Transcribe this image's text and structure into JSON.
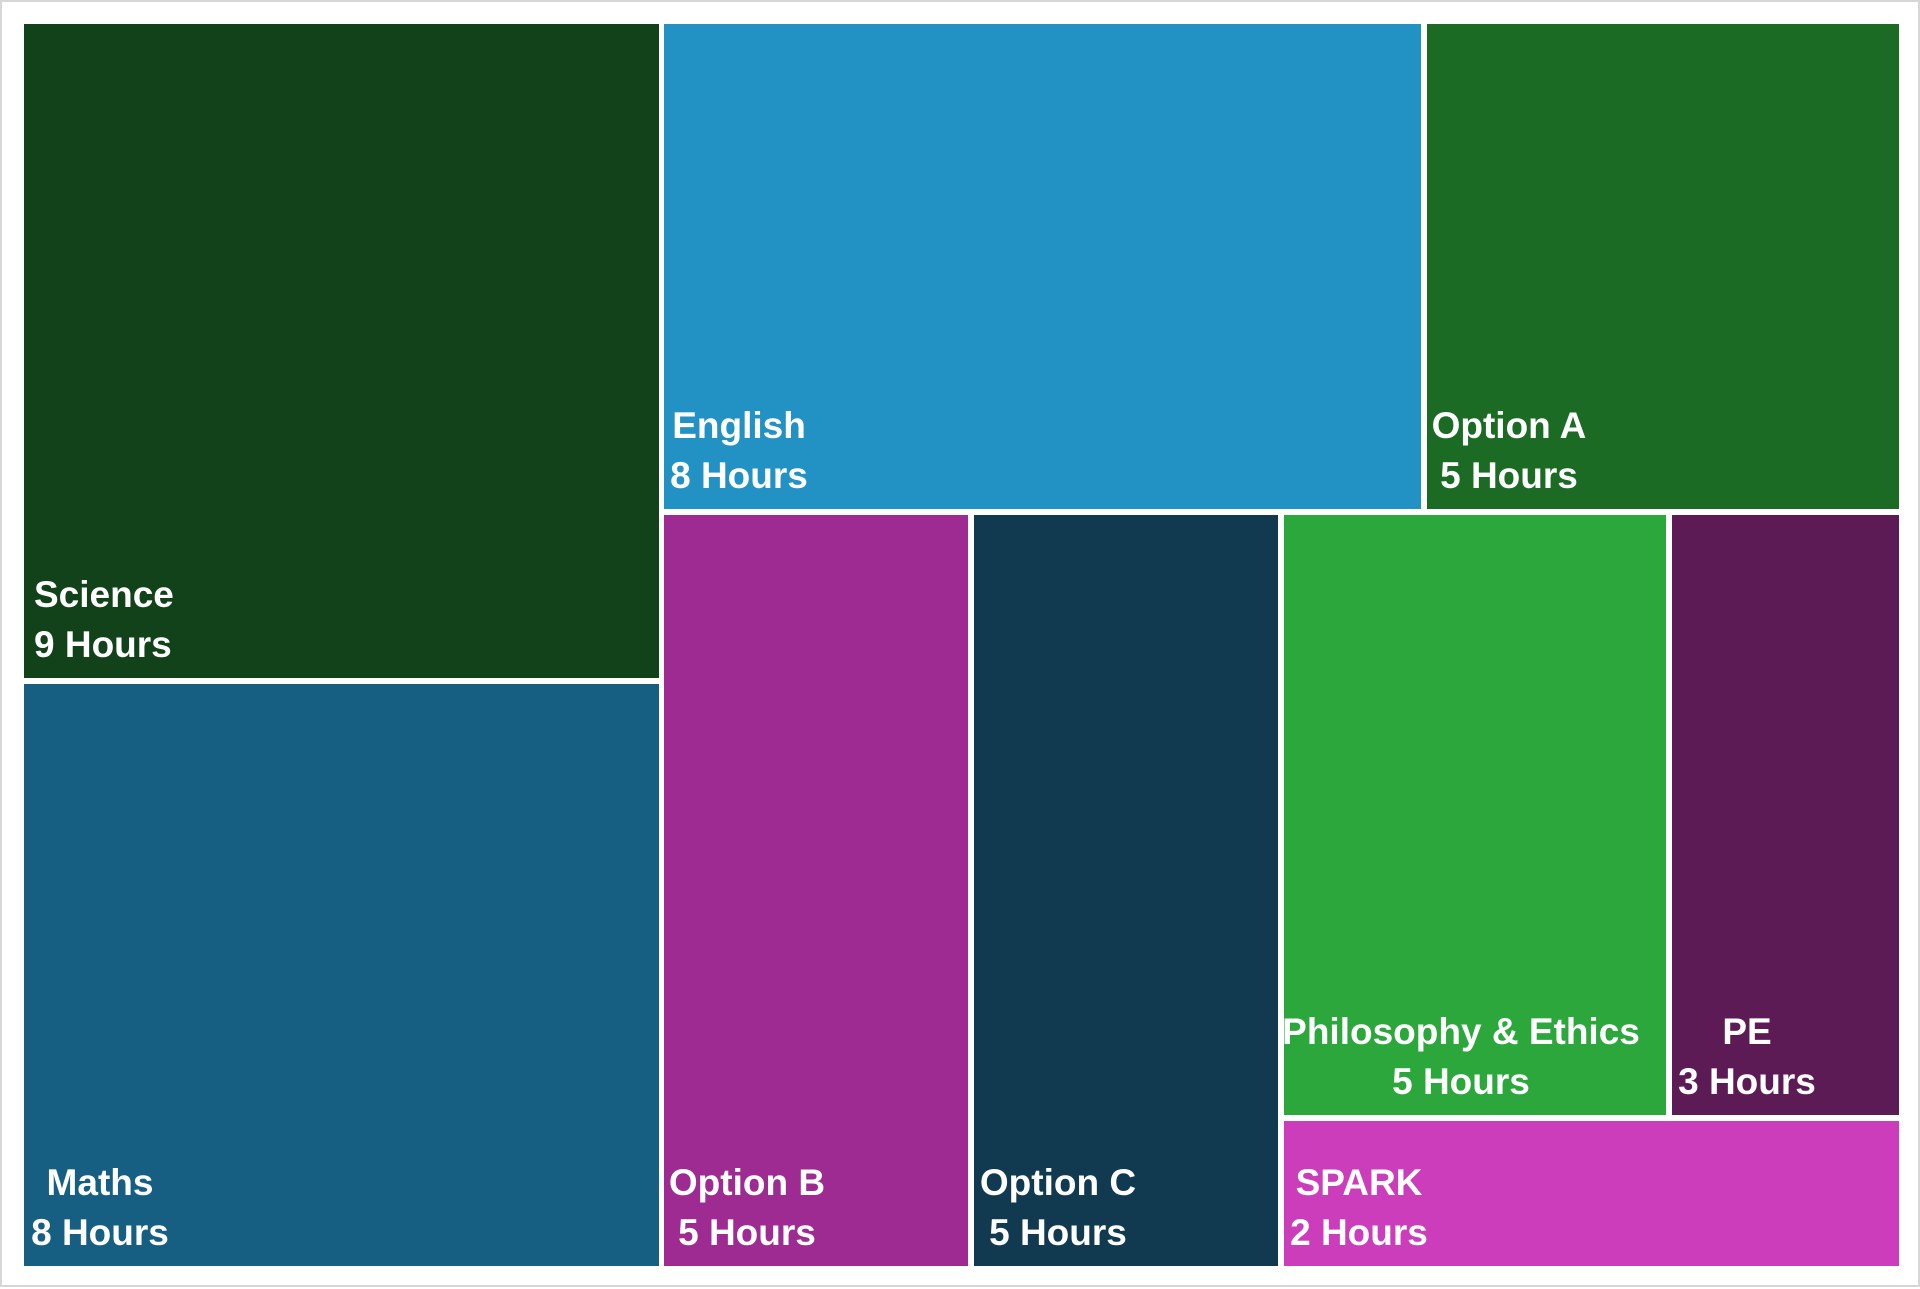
{
  "chart_data": {
    "type": "treemap",
    "unit": "Hours",
    "items": [
      {
        "label": "Science",
        "value": 9,
        "value_label": "9 Hours",
        "color": "#12421a"
      },
      {
        "label": "Maths",
        "value": 8,
        "value_label": "8 Hours",
        "color": "#175f82"
      },
      {
        "label": "English",
        "value": 8,
        "value_label": "8 Hours",
        "color": "#2291c4"
      },
      {
        "label": "Option A",
        "value": 5,
        "value_label": "5 Hours",
        "color": "#1c6b24"
      },
      {
        "label": "Option B",
        "value": 5,
        "value_label": "5 Hours",
        "color": "#9e2b91"
      },
      {
        "label": "Option C",
        "value": 5,
        "value_label": "5 Hours",
        "color": "#113a51"
      },
      {
        "label": "Philosophy & Ethics",
        "value": 5,
        "value_label": "5 Hours",
        "color": "#2ba73b"
      },
      {
        "label": "PE",
        "value": 3,
        "value_label": "3 Hours",
        "color": "#5d1b56"
      },
      {
        "label": "SPARK",
        "value": 2,
        "value_label": "2 Hours",
        "color": "#cb3dbb"
      }
    ]
  }
}
